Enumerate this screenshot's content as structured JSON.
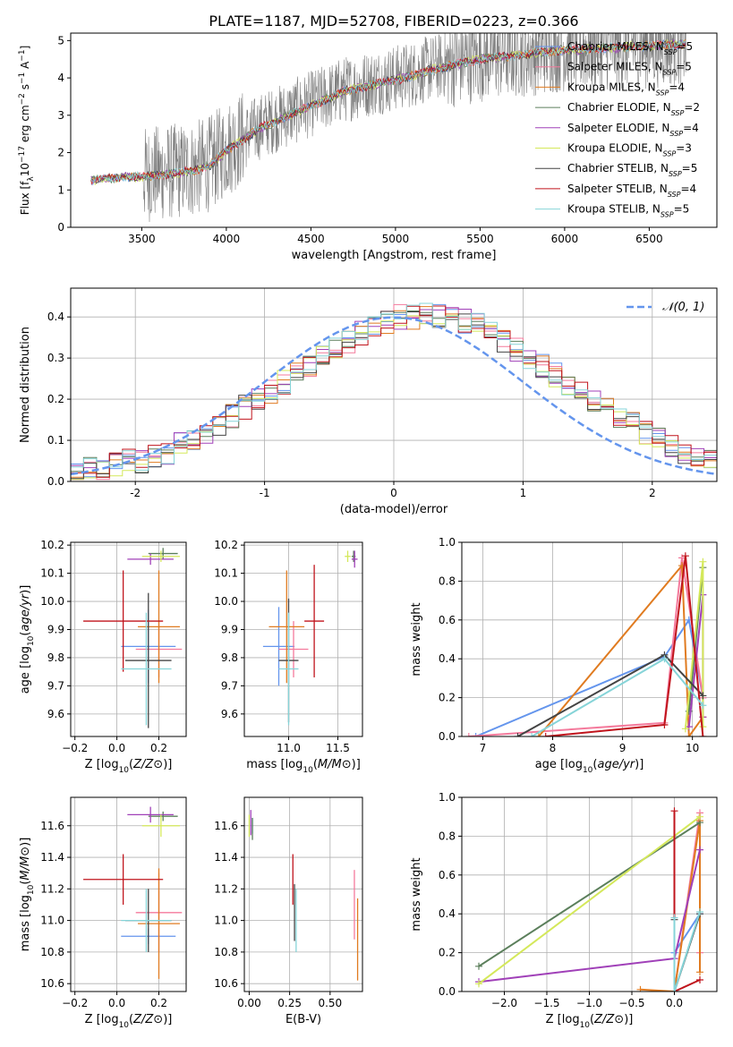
{
  "title": "PLATE=1187, MJD=52708, FIBERID=0223, z=0.366",
  "colors": {
    "Chabrier MILES": "#6495ed",
    "Salpeter MILES": "#f47a9c",
    "Kroupa MILES": "#e07b20",
    "Chabrier ELODIE": "#5b7f5b",
    "Salpeter ELODIE": "#a040b8",
    "Kroupa ELODIE": "#d4e85a",
    "Chabrier STELIB": "#444444",
    "Salpeter STELIB": "#c0141c",
    "Kroupa STELIB": "#86d4d8",
    "data": "#808080",
    "gaussian": "#6495ed"
  },
  "chart_data": [
    {
      "id": "spectrum",
      "type": "line",
      "xlabel": "wavelength [Angstrom, rest frame]",
      "ylabel": "Flux [f_λ 10^-17 erg cm^-2 s^-1 A^-1]",
      "xlim": [
        3080,
        6900
      ],
      "ylim": [
        0,
        5.2
      ],
      "xticks": [
        3500,
        4000,
        4500,
        5000,
        5500,
        6000,
        6500
      ],
      "yticks": [
        0,
        1,
        2,
        3,
        4,
        5
      ],
      "grid": false,
      "legend_position": "right",
      "legend": [
        {
          "name": "Chabrier MILES",
          "label_main": "Chabrier MILES, N",
          "label_sub": "SSP",
          "label_tail": "=5"
        },
        {
          "name": "Salpeter MILES",
          "label_main": "Salpeter MILES, N",
          "label_sub": "SSP",
          "label_tail": "=5"
        },
        {
          "name": "Kroupa MILES",
          "label_main": "Kroupa MILES, N",
          "label_sub": "SSP",
          "label_tail": "=4"
        },
        {
          "name": "Chabrier ELODIE",
          "label_main": "Chabrier ELODIE, N",
          "label_sub": "SSP",
          "label_tail": "=2"
        },
        {
          "name": "Salpeter ELODIE",
          "label_main": "Salpeter ELODIE, N",
          "label_sub": "SSP",
          "label_tail": "=4"
        },
        {
          "name": "Kroupa ELODIE",
          "label_main": "Kroupa ELODIE, N",
          "label_sub": "SSP",
          "label_tail": "=3"
        },
        {
          "name": "Chabrier STELIB",
          "label_main": "Chabrier STELIB, N",
          "label_sub": "SSP",
          "label_tail": "=5"
        },
        {
          "name": "Salpeter STELIB",
          "label_main": "Salpeter STELIB, N",
          "label_sub": "SSP",
          "label_tail": "=4"
        },
        {
          "name": "Kroupa STELIB",
          "label_main": "Kroupa STELIB, N",
          "label_sub": "SSP",
          "label_tail": "=5"
        }
      ],
      "model_continuum": {
        "x": [
          3200,
          3300,
          3400,
          3500,
          3600,
          3700,
          3800,
          3900,
          4000,
          4100,
          4200,
          4300,
          4400,
          4500,
          4600,
          4700,
          4800,
          4900,
          5000,
          5100,
          5200,
          5300,
          5400,
          5500,
          5600,
          5700,
          5800,
          5900,
          6000,
          6100,
          6200,
          6300,
          6400,
          6500,
          6600,
          6700
        ],
        "y": [
          1.3,
          1.35,
          1.4,
          1.4,
          1.45,
          1.5,
          1.55,
          1.7,
          2.1,
          2.4,
          2.7,
          2.9,
          3.1,
          3.3,
          3.5,
          3.7,
          3.8,
          3.9,
          4.0,
          4.1,
          4.25,
          4.35,
          4.45,
          4.55,
          4.6,
          4.65,
          4.7,
          4.75,
          4.8,
          4.8,
          4.85,
          4.85,
          4.9,
          4.9,
          4.95,
          4.95
        ]
      }
    },
    {
      "id": "residual_histogram",
      "type": "bar",
      "xlabel": "(data-model)/error",
      "ylabel": "Normed distribution",
      "xlim": [
        -2.5,
        2.5
      ],
      "ylim": [
        0,
        0.47
      ],
      "xticks": [
        -2,
        -1,
        0,
        1,
        2
      ],
      "yticks": [
        0.0,
        0.1,
        0.2,
        0.3,
        0.4
      ],
      "grid": true,
      "bin_width": 0.1,
      "bin_start": -2.5,
      "legend": "𝒩(0, 1)",
      "legend_position": "top-right",
      "series_seed_values": [
        0.02,
        0.03,
        0.03,
        0.04,
        0.05,
        0.05,
        0.06,
        0.07,
        0.09,
        0.1,
        0.12,
        0.14,
        0.16,
        0.18,
        0.2,
        0.22,
        0.24,
        0.26,
        0.28,
        0.3,
        0.32,
        0.34,
        0.36,
        0.37,
        0.39,
        0.4,
        0.4,
        0.41,
        0.4,
        0.4,
        0.39,
        0.38,
        0.36,
        0.34,
        0.32,
        0.3,
        0.28,
        0.26,
        0.24,
        0.22,
        0.2,
        0.18,
        0.16,
        0.14,
        0.12,
        0.1,
        0.09,
        0.07,
        0.06,
        0.05
      ]
    },
    {
      "id": "age_vs_Z",
      "type": "scatter",
      "xlabel_main": "Z [log",
      "xlabel_sub": "10",
      "xlabel_tail": "(Z/Z",
      "xlabel": "Z [log10(Z/Z⊙)]",
      "ylabel": "age [log10(age/yr)]",
      "xlim": [
        -0.22,
        0.33
      ],
      "ylim": [
        9.52,
        10.21
      ],
      "xticks": [
        -0.2,
        0.0,
        0.2
      ],
      "yticks": [
        9.6,
        9.7,
        9.8,
        9.9,
        10.0,
        10.1,
        10.2
      ],
      "grid": true,
      "points": [
        {
          "series": "Chabrier MILES",
          "x": 0.15,
          "y": 9.84,
          "xerr": 0.13,
          "yerr": 0.13
        },
        {
          "series": "Salpeter MILES",
          "x": 0.2,
          "y": 9.83,
          "xerr": 0.11,
          "yerr": 0.1
        },
        {
          "series": "Kroupa MILES",
          "x": 0.2,
          "y": 9.91,
          "xerr": 0.1,
          "yerr": 0.2
        },
        {
          "series": "Chabrier ELODIE",
          "x": 0.22,
          "y": 10.17,
          "xerr": 0.07,
          "yerr": 0.02
        },
        {
          "series": "Salpeter ELODIE",
          "x": 0.16,
          "y": 10.15,
          "xerr": 0.11,
          "yerr": 0.02
        },
        {
          "series": "Kroupa ELODIE",
          "x": 0.21,
          "y": 10.16,
          "xerr": 0.09,
          "yerr": 0.02
        },
        {
          "series": "Chabrier STELIB",
          "x": 0.15,
          "y": 9.79,
          "xerr": 0.11,
          "yerr": 0.24
        },
        {
          "series": "Salpeter STELIB",
          "x": 0.03,
          "y": 9.93,
          "xerr": 0.19,
          "yerr": 0.18
        },
        {
          "series": "Kroupa STELIB",
          "x": 0.14,
          "y": 9.76,
          "xerr": 0.12,
          "yerr": 0.2
        }
      ]
    },
    {
      "id": "age_vs_mass",
      "type": "scatter",
      "xlabel": "mass [log10(M/M⊙)]",
      "ylabel": "",
      "xlim": [
        10.55,
        11.75
      ],
      "ylim": [
        9.52,
        10.21
      ],
      "xticks": [
        11.0,
        11.5
      ],
      "yticks": [
        9.6,
        9.7,
        9.8,
        9.9,
        10.0,
        10.1,
        10.2
      ],
      "grid": true,
      "points": [
        {
          "series": "Chabrier MILES",
          "x": 10.9,
          "y": 9.84,
          "xerr": 0.16,
          "yerr": 0.14
        },
        {
          "series": "Salpeter MILES",
          "x": 11.05,
          "y": 9.83,
          "xerr": 0.15,
          "yerr": 0.1
        },
        {
          "series": "Kroupa MILES",
          "x": 10.98,
          "y": 9.91,
          "xerr": 0.18,
          "yerr": 0.2
        },
        {
          "series": "Chabrier ELODIE",
          "x": 11.66,
          "y": 10.16,
          "xerr": 0.02,
          "yerr": 0.02
        },
        {
          "series": "Salpeter ELODIE",
          "x": 11.67,
          "y": 10.15,
          "xerr": 0.03,
          "yerr": 0.03
        },
        {
          "series": "Kroupa ELODIE",
          "x": 11.6,
          "y": 10.16,
          "xerr": 0.03,
          "yerr": 0.02
        },
        {
          "series": "Chabrier STELIB",
          "x": 11.0,
          "y": 9.79,
          "xerr": 0.1,
          "yerr": 0.22
        },
        {
          "series": "Salpeter STELIB",
          "x": 11.26,
          "y": 9.93,
          "xerr": 0.1,
          "yerr": 0.2
        },
        {
          "series": "Kroupa STELIB",
          "x": 11.0,
          "y": 9.76,
          "xerr": 0.1,
          "yerr": 0.2
        }
      ]
    },
    {
      "id": "weight_vs_age",
      "type": "line",
      "xlabel": "age [log10(age/yr)]",
      "ylabel": "mass weight",
      "xlim": [
        6.7,
        10.35
      ],
      "ylim": [
        0,
        1.0
      ],
      "xticks": [
        7,
        8,
        9,
        10
      ],
      "yticks": [
        0.0,
        0.2,
        0.4,
        0.6,
        0.8,
        1.0
      ],
      "grid": true,
      "series": [
        {
          "name": "Chabrier MILES",
          "x": [
            6.9,
            9.6,
            9.95,
            10.15
          ],
          "y": [
            0.0,
            0.41,
            0.6,
            0.2
          ]
        },
        {
          "name": "Salpeter MILES",
          "x": [
            6.8,
            9.6,
            9.85,
            10.15
          ],
          "y": [
            0.0,
            0.07,
            0.92,
            0.2
          ]
        },
        {
          "name": "Kroupa MILES",
          "x": [
            7.8,
            9.85,
            9.95,
            10.15
          ],
          "y": [
            0.0,
            0.88,
            0.0,
            0.1
          ]
        },
        {
          "name": "Chabrier ELODIE",
          "x": [
            9.95,
            10.15
          ],
          "y": [
            0.13,
            0.87
          ]
        },
        {
          "name": "Salpeter ELODIE",
          "x": [
            9.95,
            10.15,
            10.15
          ],
          "y": [
            0.05,
            0.73,
            0.1
          ]
        },
        {
          "name": "Kroupa ELODIE",
          "x": [
            9.9,
            10.15,
            10.15
          ],
          "y": [
            0.04,
            0.9,
            0.05
          ]
        },
        {
          "name": "Chabrier STELIB",
          "x": [
            7.5,
            9.6,
            10.15
          ],
          "y": [
            0.0,
            0.42,
            0.21
          ]
        },
        {
          "name": "Salpeter STELIB",
          "x": [
            7.9,
            9.6,
            9.9,
            10.15
          ],
          "y": [
            0.0,
            0.06,
            0.93,
            0.0
          ]
        },
        {
          "name": "Kroupa STELIB",
          "x": [
            7.7,
            9.6,
            10.15
          ],
          "y": [
            0.0,
            0.4,
            0.16
          ]
        }
      ]
    },
    {
      "id": "mass_vs_Z",
      "type": "scatter",
      "xlabel": "Z [log10(Z/Z⊙)]",
      "ylabel": "mass [log10(M/M⊙)]",
      "xlim": [
        -0.22,
        0.33
      ],
      "ylim": [
        10.55,
        11.78
      ],
      "xticks": [
        -0.2,
        0.0,
        0.2
      ],
      "yticks": [
        10.6,
        10.8,
        11.0,
        11.2,
        11.4,
        11.6
      ],
      "grid": true,
      "points": [
        {
          "series": "Chabrier MILES",
          "x": 0.15,
          "y": 10.9,
          "xerr": 0.13,
          "yerr": 0.05
        },
        {
          "series": "Salpeter MILES",
          "x": 0.2,
          "y": 11.05,
          "xerr": 0.11,
          "yerr": 0.25
        },
        {
          "series": "Kroupa MILES",
          "x": 0.2,
          "y": 10.98,
          "xerr": 0.1,
          "yerr": 0.35
        },
        {
          "series": "Chabrier ELODIE",
          "x": 0.22,
          "y": 11.66,
          "xerr": 0.07,
          "yerr": 0.03
        },
        {
          "series": "Salpeter ELODIE",
          "x": 0.16,
          "y": 11.67,
          "xerr": 0.11,
          "yerr": 0.05
        },
        {
          "series": "Kroupa ELODIE",
          "x": 0.21,
          "y": 11.6,
          "xerr": 0.09,
          "yerr": 0.07
        },
        {
          "series": "Chabrier STELIB",
          "x": 0.15,
          "y": 11.0,
          "xerr": 0.11,
          "yerr": 0.2
        },
        {
          "series": "Salpeter STELIB",
          "x": 0.03,
          "y": 11.26,
          "xerr": 0.19,
          "yerr": 0.16
        },
        {
          "series": "Kroupa STELIB",
          "x": 0.14,
          "y": 11.0,
          "xerr": 0.12,
          "yerr": 0.2
        }
      ]
    },
    {
      "id": "mass_vs_EBV",
      "type": "scatter",
      "xlabel": "E(B-V)",
      "ylabel": "",
      "xlim": [
        -0.03,
        0.7
      ],
      "ylim": [
        10.55,
        11.78
      ],
      "xticks": [
        0.0,
        0.25,
        0.5
      ],
      "yticks": [
        10.6,
        10.8,
        11.0,
        11.2,
        11.4,
        11.6
      ],
      "grid": true,
      "points": [
        {
          "series": "Chabrier MILES",
          "x": 0.02,
          "y": 11.6,
          "xerr": 0.0,
          "yerr": 0.05
        },
        {
          "series": "Salpeter MILES",
          "x": 0.65,
          "y": 11.1,
          "xerr": 0.0,
          "yerr": 0.22
        },
        {
          "series": "Kroupa MILES",
          "x": 0.67,
          "y": 10.88,
          "xerr": 0.0,
          "yerr": 0.26
        },
        {
          "series": "Chabrier ELODIE",
          "x": 0.02,
          "y": 11.58,
          "xerr": 0.0,
          "yerr": 0.07
        },
        {
          "series": "Salpeter ELODIE",
          "x": 0.01,
          "y": 11.62,
          "xerr": 0.0,
          "yerr": 0.08
        },
        {
          "series": "Kroupa ELODIE",
          "x": 0.0,
          "y": 11.6,
          "xerr": 0.0,
          "yerr": 0.07
        },
        {
          "series": "Chabrier STELIB",
          "x": 0.28,
          "y": 11.05,
          "xerr": 0.0,
          "yerr": 0.18
        },
        {
          "series": "Salpeter STELIB",
          "x": 0.27,
          "y": 11.26,
          "xerr": 0.0,
          "yerr": 0.16
        },
        {
          "series": "Kroupa STELIB",
          "x": 0.29,
          "y": 11.0,
          "xerr": 0.0,
          "yerr": 0.2
        }
      ]
    },
    {
      "id": "weight_vs_Z",
      "type": "line",
      "xlabel": "Z [log10(Z/Z⊙)]",
      "ylabel": "mass weight",
      "xlim": [
        -2.5,
        0.5
      ],
      "ylim": [
        0,
        1.0
      ],
      "xticks": [
        -2.0,
        -1.5,
        -1.0,
        -0.5,
        0.0
      ],
      "yticks": [
        0.0,
        0.2,
        0.4,
        0.6,
        0.8,
        1.0
      ],
      "grid": true,
      "series": [
        {
          "name": "Chabrier MILES",
          "x": [
            0.0,
            0.3,
            0.3
          ],
          "y": [
            0.2,
            0.4,
            0.88
          ]
        },
        {
          "name": "Salpeter MILES",
          "x": [
            0.0,
            0.3,
            0.3
          ],
          "y": [
            0.0,
            0.92,
            0.2
          ]
        },
        {
          "name": "Kroupa MILES",
          "x": [
            -0.4,
            0.0,
            0.3,
            0.3
          ],
          "y": [
            0.01,
            0.0,
            0.88,
            0.1
          ]
        },
        {
          "name": "Chabrier ELODIE",
          "x": [
            -2.3,
            0.3
          ],
          "y": [
            0.13,
            0.87
          ]
        },
        {
          "name": "Salpeter ELODIE",
          "x": [
            -2.3,
            0.0,
            0.3
          ],
          "y": [
            0.05,
            0.17,
            0.73
          ]
        },
        {
          "name": "Kroupa ELODIE",
          "x": [
            -2.3,
            0.3
          ],
          "y": [
            0.04,
            0.9
          ]
        },
        {
          "name": "Chabrier STELIB",
          "x": [
            0.0,
            0.0,
            0.3
          ],
          "y": [
            0.37,
            0.0,
            0.4
          ]
        },
        {
          "name": "Salpeter STELIB",
          "x": [
            0.0,
            0.0,
            0.3
          ],
          "y": [
            0.93,
            0.0,
            0.06
          ]
        },
        {
          "name": "Kroupa STELIB",
          "x": [
            0.0,
            0.0,
            0.3
          ],
          "y": [
            0.38,
            0.0,
            0.41
          ]
        }
      ]
    }
  ]
}
